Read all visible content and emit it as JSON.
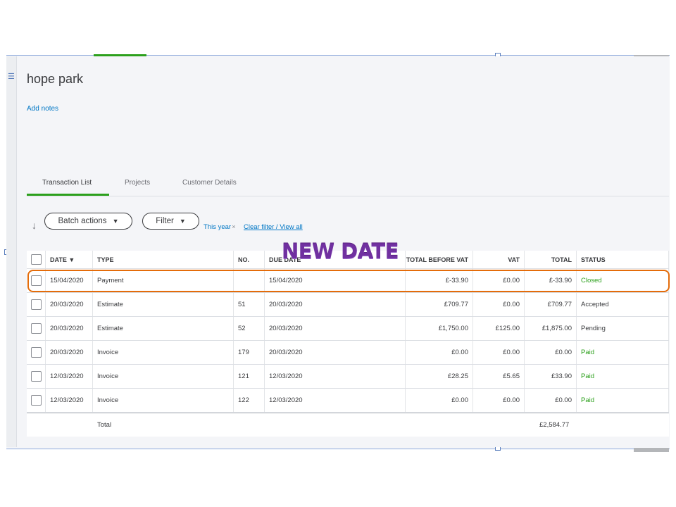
{
  "customer": {
    "name": "hope park",
    "add_notes": "Add notes"
  },
  "tabs": [
    {
      "label": "Transaction List"
    },
    {
      "label": "Projects"
    },
    {
      "label": "Customer Details"
    }
  ],
  "toolbar": {
    "batch_actions": "Batch actions",
    "filter": "Filter",
    "filter_period": "This year",
    "clear_filter": "Clear filter / View all"
  },
  "table": {
    "headers": {
      "date": "DATE ▼",
      "type": "TYPE",
      "no": "NO.",
      "due_date": "DUE DATE",
      "total_before_vat": "TOTAL BEFORE VAT",
      "vat": "VAT",
      "total": "TOTAL",
      "status": "STATUS"
    },
    "rows": [
      {
        "date": "15/04/2020",
        "type": "Payment",
        "no": "",
        "due_date": "15/04/2020",
        "total_before_vat": "£-33.90",
        "vat": "£0.00",
        "total": "£-33.90",
        "status": "Closed"
      },
      {
        "date": "20/03/2020",
        "type": "Estimate",
        "no": "51",
        "due_date": "20/03/2020",
        "total_before_vat": "£709.77",
        "vat": "£0.00",
        "total": "£709.77",
        "status": "Accepted"
      },
      {
        "date": "20/03/2020",
        "type": "Estimate",
        "no": "52",
        "due_date": "20/03/2020",
        "total_before_vat": "£1,750.00",
        "vat": "£125.00",
        "total": "£1,875.00",
        "status": "Pending"
      },
      {
        "date": "20/03/2020",
        "type": "Invoice",
        "no": "179",
        "due_date": "20/03/2020",
        "total_before_vat": "£0.00",
        "vat": "£0.00",
        "total": "£0.00",
        "status": "Paid"
      },
      {
        "date": "12/03/2020",
        "type": "Invoice",
        "no": "121",
        "due_date": "12/03/2020",
        "total_before_vat": "£28.25",
        "vat": "£5.65",
        "total": "£33.90",
        "status": "Paid"
      },
      {
        "date": "12/03/2020",
        "type": "Invoice",
        "no": "122",
        "due_date": "12/03/2020",
        "total_before_vat": "£0.00",
        "vat": "£0.00",
        "total": "£0.00",
        "status": "Paid"
      }
    ],
    "footer": {
      "label": "Total",
      "total": "£2,584.77"
    }
  },
  "annotation": {
    "text": "NEW DATE",
    "color": "#7030a0",
    "highlight_color": "#e46c0a"
  },
  "colors": {
    "accent_green": "#2ca01c",
    "link_blue": "#0077c5"
  }
}
